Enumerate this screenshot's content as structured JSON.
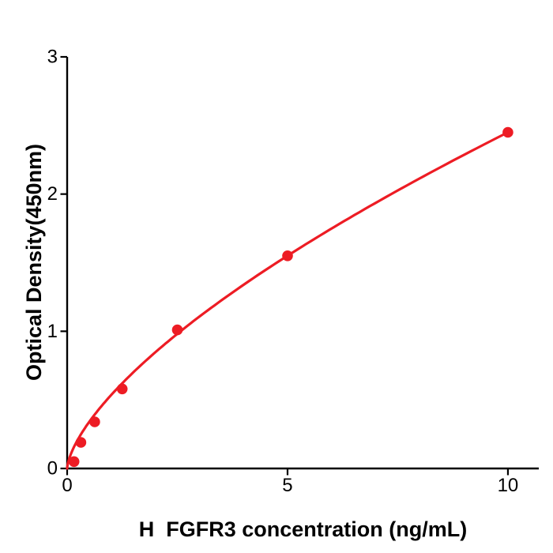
{
  "chart_data": {
    "type": "scatter",
    "title": "",
    "xlabel": "H  FGFR3 concentration (ng/mL)",
    "ylabel": "Optical Density(450nm)",
    "x": [
      0.156,
      0.3125,
      0.625,
      1.25,
      2.5,
      5,
      10
    ],
    "y": [
      0.05,
      0.19,
      0.34,
      0.58,
      1.01,
      1.55,
      2.45
    ],
    "xlim": [
      0,
      10.7
    ],
    "ylim": [
      0,
      3
    ],
    "xticks": [
      0,
      5,
      10
    ],
    "yticks": [
      0,
      1,
      2,
      3
    ],
    "grid": false,
    "legend_position": "none",
    "series_color": "#ed1c24",
    "axis_color": "#000000",
    "background_color": "#ffffff",
    "fit_curve": {
      "type": "power",
      "k": 0.536,
      "p": 0.66,
      "x_start": 0,
      "x_end": 10
    }
  }
}
